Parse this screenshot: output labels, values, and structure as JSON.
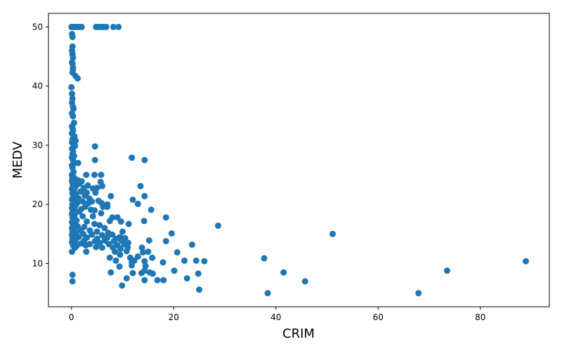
{
  "chart_data": {
    "type": "scatter",
    "xlabel": "CRIM",
    "ylabel": "MEDV",
    "xlim": [
      -4.5,
      93.5
    ],
    "ylim": [
      2.7,
      52.3
    ],
    "xticks": [
      0,
      20,
      40,
      60,
      80
    ],
    "yticks": [
      10,
      20,
      30,
      40,
      50
    ],
    "grid": false,
    "color": "#1f77b4",
    "points": [
      [
        0.0,
        50.0
      ],
      [
        0.2,
        50.0
      ],
      [
        0.6,
        50.0
      ],
      [
        1.0,
        50.0
      ],
      [
        1.5,
        50.0
      ],
      [
        2.0,
        50.0
      ],
      [
        4.8,
        50.0
      ],
      [
        5.2,
        50.0
      ],
      [
        5.8,
        50.0
      ],
      [
        6.2,
        50.0
      ],
      [
        6.8,
        50.0
      ],
      [
        8.2,
        50.0
      ],
      [
        9.2,
        50.0
      ],
      [
        0.1,
        48.8
      ],
      [
        0.2,
        48.3
      ],
      [
        0.2,
        46.7
      ],
      [
        0.1,
        46.0
      ],
      [
        0.2,
        45.4
      ],
      [
        0.3,
        44.8
      ],
      [
        0.1,
        44.0
      ],
      [
        0.2,
        43.8
      ],
      [
        0.3,
        43.1
      ],
      [
        0.2,
        42.3
      ],
      [
        0.3,
        42.8
      ],
      [
        0.8,
        41.7
      ],
      [
        1.2,
        41.3
      ],
      [
        0.0,
        39.8
      ],
      [
        0.1,
        38.7
      ],
      [
        0.2,
        37.9
      ],
      [
        0.1,
        37.2
      ],
      [
        0.3,
        36.5
      ],
      [
        0.4,
        36.2
      ],
      [
        0.1,
        35.4
      ],
      [
        0.3,
        34.9
      ],
      [
        0.5,
        33.8
      ],
      [
        0.1,
        33.2
      ],
      [
        0.2,
        32.9
      ],
      [
        0.3,
        32.5
      ],
      [
        0.1,
        32.0
      ],
      [
        0.4,
        31.6
      ],
      [
        0.6,
        31.5
      ],
      [
        0.2,
        31.0
      ],
      [
        0.8,
        30.8
      ],
      [
        0.1,
        30.5
      ],
      [
        0.4,
        30.1
      ],
      [
        0.7,
        29.9
      ],
      [
        4.6,
        29.8
      ],
      [
        0.1,
        29.4
      ],
      [
        0.3,
        29.0
      ],
      [
        0.2,
        28.5
      ],
      [
        0.5,
        28.2
      ],
      [
        0.1,
        27.9
      ],
      [
        11.8,
        27.9
      ],
      [
        0.3,
        27.5
      ],
      [
        4.6,
        27.5
      ],
      [
        14.3,
        27.5
      ],
      [
        0.6,
        27.0
      ],
      [
        1.3,
        27.0
      ],
      [
        0.1,
        26.6
      ],
      [
        0.2,
        26.2
      ],
      [
        0.4,
        25.5
      ],
      [
        0.1,
        25.0
      ],
      [
        2.9,
        25.0
      ],
      [
        4.5,
        25.0
      ],
      [
        5.8,
        25.0
      ],
      [
        0.3,
        24.8
      ],
      [
        0.2,
        24.5
      ],
      [
        0.6,
        24.4
      ],
      [
        1.2,
        24.1
      ],
      [
        0.1,
        24.0
      ],
      [
        0.4,
        23.9
      ],
      [
        2.0,
        23.9
      ],
      [
        0.2,
        23.6
      ],
      [
        1.5,
        23.5
      ],
      [
        3.2,
        23.2
      ],
      [
        5.7,
        23.8
      ],
      [
        13.5,
        23.1
      ],
      [
        0.3,
        23.1
      ],
      [
        0.8,
        23.0
      ],
      [
        2.4,
        22.8
      ],
      [
        5.0,
        22.8
      ],
      [
        6.0,
        23.1
      ],
      [
        4.2,
        22.7
      ],
      [
        0.1,
        22.6
      ],
      [
        0.5,
        22.4
      ],
      [
        1.8,
        22.2
      ],
      [
        3.0,
        22.0
      ],
      [
        4.7,
        22.0
      ],
      [
        0.2,
        21.9
      ],
      [
        0.9,
        21.7
      ],
      [
        2.6,
        21.5
      ],
      [
        7.7,
        21.4
      ],
      [
        14.3,
        21.4
      ],
      [
        0.3,
        21.2
      ],
      [
        1.4,
        21.0
      ],
      [
        3.5,
        21.0
      ],
      [
        0.1,
        20.8
      ],
      [
        0.7,
        20.6
      ],
      [
        2.2,
        20.5
      ],
      [
        4.0,
        20.5
      ],
      [
        5.3,
        20.6
      ],
      [
        12.0,
        20.8
      ],
      [
        0.4,
        20.3
      ],
      [
        1.1,
        20.2
      ],
      [
        3.3,
        20.2
      ],
      [
        5.9,
        20.2
      ],
      [
        7.0,
        20.0
      ],
      [
        13.0,
        20.1
      ],
      [
        0.2,
        20.0
      ],
      [
        0.8,
        19.8
      ],
      [
        2.7,
        19.6
      ],
      [
        6.2,
        19.6
      ],
      [
        7.0,
        19.6
      ],
      [
        0.1,
        19.4
      ],
      [
        0.5,
        19.3
      ],
      [
        1.9,
        19.2
      ],
      [
        3.8,
        19.1
      ],
      [
        4.5,
        19.0
      ],
      [
        15.6,
        19.1
      ],
      [
        0.3,
        18.9
      ],
      [
        1.5,
        18.8
      ],
      [
        5.8,
        18.5
      ],
      [
        0.1,
        18.4
      ],
      [
        0.6,
        18.2
      ],
      [
        2.2,
        18.0
      ],
      [
        4.2,
        18.0
      ],
      [
        8.0,
        17.8
      ],
      [
        9.0,
        17.8
      ],
      [
        18.5,
        17.8
      ],
      [
        0.2,
        17.8
      ],
      [
        0.4,
        17.5
      ],
      [
        1.0,
        17.3
      ],
      [
        3.0,
        17.1
      ],
      [
        7.5,
        17.2
      ],
      [
        9.7,
        17.1
      ],
      [
        14.2,
        17.2
      ],
      [
        0.1,
        17.0
      ],
      [
        0.7,
        16.8
      ],
      [
        4.5,
        16.7
      ],
      [
        5.5,
        16.5
      ],
      [
        11.2,
        16.7
      ],
      [
        0.3,
        16.5
      ],
      [
        1.2,
        16.3
      ],
      [
        2.5,
        16.2
      ],
      [
        6.5,
        16.0
      ],
      [
        28.7,
        16.4
      ],
      [
        0.1,
        16.0
      ],
      [
        0.5,
        15.8
      ],
      [
        1.8,
        15.6
      ],
      [
        3.6,
        15.6
      ],
      [
        5.0,
        15.4
      ],
      [
        7.2,
        15.2
      ],
      [
        10.0,
        15.4
      ],
      [
        0.2,
        15.4
      ],
      [
        0.9,
        15.2
      ],
      [
        2.3,
        15.0
      ],
      [
        4.0,
        14.9
      ],
      [
        6.0,
        14.8
      ],
      [
        8.0,
        14.9
      ],
      [
        9.5,
        14.5
      ],
      [
        19.6,
        15.1
      ],
      [
        51.1,
        15.0
      ],
      [
        0.1,
        14.8
      ],
      [
        0.4,
        14.6
      ],
      [
        1.4,
        14.5
      ],
      [
        3.0,
        14.4
      ],
      [
        5.0,
        14.2
      ],
      [
        7.0,
        14.4
      ],
      [
        8.8,
        14.2
      ],
      [
        10.5,
        14.3
      ],
      [
        0.2,
        14.2
      ],
      [
        0.8,
        14.0
      ],
      [
        2.5,
        13.9
      ],
      [
        4.6,
        13.8
      ],
      [
        6.5,
        13.9
      ],
      [
        8.3,
        13.8
      ],
      [
        9.8,
        13.9
      ],
      [
        11.1,
        13.5
      ],
      [
        15.2,
        13.9
      ],
      [
        18.5,
        13.8
      ],
      [
        0.1,
        13.6
      ],
      [
        0.5,
        13.5
      ],
      [
        1.9,
        13.4
      ],
      [
        3.6,
        13.3
      ],
      [
        5.5,
        13.5
      ],
      [
        7.3,
        13.3
      ],
      [
        9.0,
        13.1
      ],
      [
        10.3,
        13.3
      ],
      [
        23.6,
        13.2
      ],
      [
        0.3,
        13.1
      ],
      [
        1.1,
        13.1
      ],
      [
        2.8,
        13.1
      ],
      [
        4.8,
        12.8
      ],
      [
        6.0,
        12.7
      ],
      [
        8.1,
        12.7
      ],
      [
        9.6,
        12.5
      ],
      [
        11.0,
        12.7
      ],
      [
        13.8,
        12.7
      ],
      [
        0.7,
        12.7
      ],
      [
        0.1,
        12.0
      ],
      [
        2.9,
        12.0
      ],
      [
        8.5,
        12.0
      ],
      [
        10.8,
        12.1
      ],
      [
        14.0,
        11.9
      ],
      [
        15.0,
        12.0
      ],
      [
        20.7,
        11.9
      ],
      [
        9.5,
        11.5
      ],
      [
        13.0,
        11.2
      ],
      [
        7.5,
        11.0
      ],
      [
        11.5,
        11.0
      ],
      [
        15.8,
        11.0
      ],
      [
        37.7,
        10.9
      ],
      [
        8.7,
        10.5
      ],
      [
        12.3,
        10.5
      ],
      [
        14.3,
        10.4
      ],
      [
        22.1,
        10.5
      ],
      [
        24.4,
        10.5
      ],
      [
        26.0,
        10.4
      ],
      [
        88.9,
        10.4
      ],
      [
        11.8,
        10.2
      ],
      [
        14.5,
        9.6
      ],
      [
        17.9,
        10.2
      ],
      [
        9.4,
        9.5
      ],
      [
        11.8,
        9.7
      ],
      [
        14.3,
        8.8
      ],
      [
        20.1,
        8.8
      ],
      [
        73.5,
        8.8
      ],
      [
        7.7,
        8.5
      ],
      [
        12.0,
        8.4
      ],
      [
        13.7,
        8.4
      ],
      [
        15.3,
        8.5
      ],
      [
        15.9,
        8.3
      ],
      [
        24.8,
        8.3
      ],
      [
        41.5,
        8.5
      ],
      [
        0.2,
        8.1
      ],
      [
        10.8,
        7.5
      ],
      [
        14.3,
        7.2
      ],
      [
        16.8,
        7.2
      ],
      [
        18.0,
        7.2
      ],
      [
        22.6,
        7.5
      ],
      [
        0.2,
        7.0
      ],
      [
        45.7,
        7.0
      ],
      [
        9.9,
        6.3
      ],
      [
        25.0,
        5.6
      ],
      [
        38.4,
        5.0
      ],
      [
        67.9,
        5.0
      ]
    ]
  }
}
